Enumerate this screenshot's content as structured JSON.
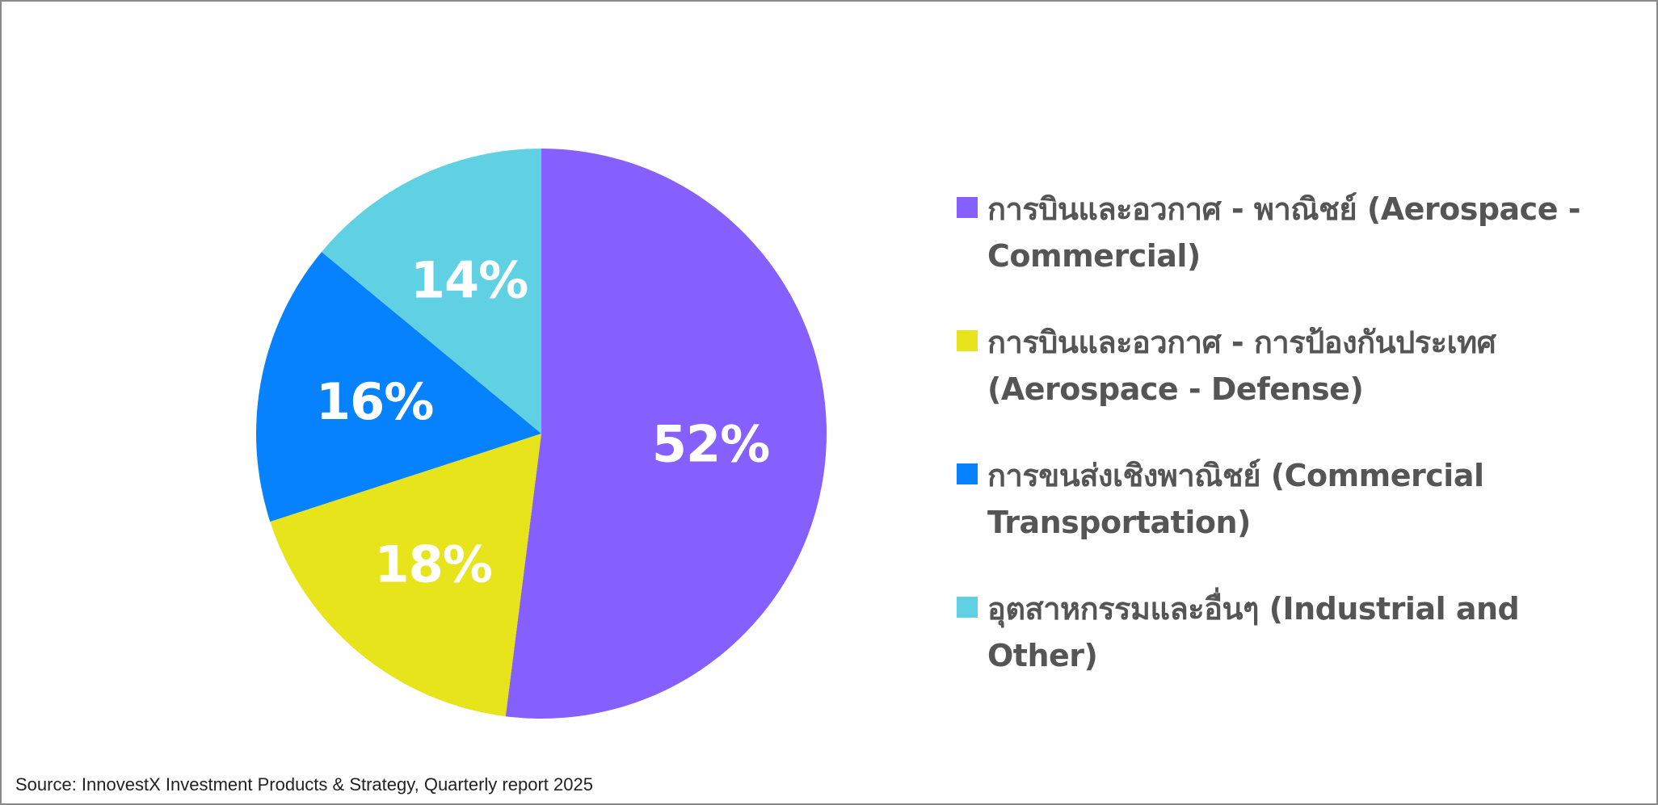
{
  "chart_data": {
    "type": "pie",
    "title": "",
    "unit": "%",
    "slices": [
      {
        "label": "การบินและอวกาศ - พาณิชย์ (Aerospace - Commercial)",
        "value": 52,
        "display": "52%",
        "color": "#8660FE"
      },
      {
        "label": "การบินและอวกาศ - การป้องกันประเทศ (Aerospace - Defense)",
        "value": 18,
        "display": "18%",
        "color": "#E8E41C"
      },
      {
        "label": "การขนส่งเชิงพาณิชย์ (Commercial Transportation)",
        "value": 16,
        "display": "16%",
        "color": "#0782FF"
      },
      {
        "label": "อุตสาหกรรมและอื่นๆ (Industrial and Other)",
        "value": 14,
        "display": "14%",
        "color": "#60D1E2"
      }
    ],
    "start_angle_deg": 0,
    "direction": "clockwise",
    "legend_position": "right",
    "label_color": "#FFFFFF"
  },
  "legend": {
    "text_color": "#555555"
  },
  "source": "Source: InnovestX Investment Products & Strategy, Quarterly report 2025"
}
